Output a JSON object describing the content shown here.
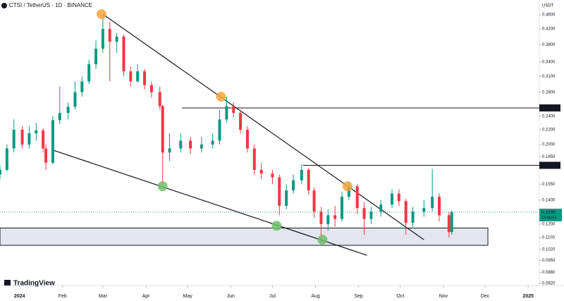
{
  "chart_data": {
    "type": "candlestick",
    "title": "CTSI / TetherUS · 1D · BINANCE",
    "currency": "USDT",
    "brand": "TradingView",
    "log_scale": true,
    "up_color": "#089981",
    "down_color": "#f23645",
    "x": [
      -14,
      -9,
      -4,
      2,
      7,
      12,
      17,
      19,
      24,
      29,
      35,
      40,
      45,
      50,
      55,
      60,
      65,
      70,
      75,
      80,
      85,
      90,
      95,
      101,
      103,
      108,
      116,
      123,
      131,
      139,
      144,
      149,
      154,
      159,
      164,
      169,
      174,
      182,
      187,
      192,
      197,
      203,
      208,
      212,
      217,
      222,
      227,
      232,
      237,
      243,
      248,
      253,
      260,
      268,
      273,
      278,
      283,
      291,
      297,
      302,
      309,
      311
    ],
    "open": [
      0.165,
      0.17,
      0.195,
      0.22,
      0.2,
      0.215,
      0.219,
      0.195,
      0.178,
      0.234,
      0.245,
      0.255,
      0.28,
      0.3,
      0.335,
      0.37,
      0.42,
      0.387,
      0.4,
      0.32,
      0.3,
      0.32,
      0.293,
      0.28,
      0.256,
      0.19,
      0.195,
      0.205,
      0.195,
      0.2,
      0.205,
      0.235,
      0.256,
      0.245,
      0.22,
      0.195,
      0.17,
      0.166,
      0.162,
      0.135,
      0.149,
      0.159,
      0.17,
      0.149,
      0.13,
      0.12,
      0.127,
      0.124,
      0.143,
      0.153,
      0.133,
      0.124,
      0.13,
      0.136,
      0.146,
      0.139,
      0.121,
      0.13,
      0.133,
      0.143,
      0.127,
      0.114
    ],
    "high": [
      0.175,
      0.2,
      0.235,
      0.225,
      0.225,
      0.23,
      0.222,
      0.2,
      0.24,
      0.29,
      0.262,
      0.3,
      0.31,
      0.345,
      0.39,
      0.462,
      0.44,
      0.41,
      0.405,
      0.33,
      0.335,
      0.325,
      0.3,
      0.29,
      0.258,
      0.215,
      0.215,
      0.21,
      0.21,
      0.215,
      0.25,
      0.272,
      0.262,
      0.25,
      0.225,
      0.2,
      0.178,
      0.17,
      0.165,
      0.155,
      0.165,
      0.176,
      0.172,
      0.152,
      0.134,
      0.132,
      0.135,
      0.148,
      0.158,
      0.155,
      0.138,
      0.134,
      0.14,
      0.15,
      0.15,
      0.141,
      0.134,
      0.14,
      0.171,
      0.146,
      0.13,
      0.131
    ],
    "low": [
      0.16,
      0.168,
      0.19,
      0.195,
      0.195,
      0.205,
      0.19,
      0.17,
      0.176,
      0.228,
      0.235,
      0.25,
      0.272,
      0.295,
      0.325,
      0.36,
      0.3,
      0.36,
      0.31,
      0.29,
      0.298,
      0.285,
      0.27,
      0.25,
      0.155,
      0.18,
      0.19,
      0.188,
      0.19,
      0.195,
      0.2,
      0.23,
      0.238,
      0.215,
      0.19,
      0.165,
      0.16,
      0.155,
      0.127,
      0.132,
      0.146,
      0.155,
      0.145,
      0.125,
      0.106,
      0.115,
      0.118,
      0.122,
      0.14,
      0.128,
      0.112,
      0.12,
      0.126,
      0.133,
      0.135,
      0.112,
      0.118,
      0.126,
      0.13,
      0.122,
      0.11,
      0.112
    ],
    "close": [
      0.17,
      0.195,
      0.22,
      0.2,
      0.215,
      0.219,
      0.195,
      0.178,
      0.234,
      0.245,
      0.255,
      0.28,
      0.3,
      0.335,
      0.37,
      0.42,
      0.387,
      0.4,
      0.32,
      0.3,
      0.32,
      0.293,
      0.28,
      0.256,
      0.19,
      0.195,
      0.205,
      0.195,
      0.2,
      0.205,
      0.235,
      0.256,
      0.245,
      0.22,
      0.195,
      0.17,
      0.166,
      0.162,
      0.135,
      0.149,
      0.159,
      0.17,
      0.149,
      0.13,
      0.12,
      0.127,
      0.124,
      0.143,
      0.153,
      0.133,
      0.124,
      0.13,
      0.136,
      0.146,
      0.139,
      0.121,
      0.13,
      0.133,
      0.143,
      0.127,
      0.114,
      0.1295
    ],
    "xlim": [
      -14,
      374
    ],
    "xticks": [
      {
        "value": 0,
        "label": "2024"
      },
      {
        "value": 31,
        "label": "Feb"
      },
      {
        "value": 60,
        "label": "Mar"
      },
      {
        "value": 91,
        "label": "Apr"
      },
      {
        "value": 121,
        "label": "May"
      },
      {
        "value": 152,
        "label": "Jun"
      },
      {
        "value": 182,
        "label": "Jul"
      },
      {
        "value": 213,
        "label": "Aug"
      },
      {
        "value": 244,
        "label": "Sep"
      },
      {
        "value": 274,
        "label": "Oct"
      },
      {
        "value": 305,
        "label": "Nov"
      },
      {
        "value": 335,
        "label": "Dec"
      },
      {
        "value": 366,
        "label": "2025"
      }
    ],
    "ylim": [
      0.082,
      0.506
    ],
    "yticks": [
      {
        "value": 0.46,
        "label": "0.4600"
      },
      {
        "value": 0.42,
        "label": "0.4200"
      },
      {
        "value": 0.38,
        "label": "0.3800"
      },
      {
        "value": 0.34,
        "label": "0.3400"
      },
      {
        "value": 0.31,
        "label": "0.3100"
      },
      {
        "value": 0.28,
        "label": "0.2800"
      },
      {
        "value": 0.24,
        "label": "0.2400"
      },
      {
        "value": 0.22,
        "label": "0.2200"
      },
      {
        "value": 0.2,
        "label": "0.2000"
      },
      {
        "value": 0.185,
        "label": "0.1850"
      },
      {
        "value": 0.155,
        "label": "0.1550"
      },
      {
        "value": 0.14,
        "label": "0.1400"
      },
      {
        "value": 0.12,
        "label": "0.1200"
      },
      {
        "value": 0.11,
        "label": "0.1100"
      },
      {
        "value": 0.102,
        "label": "0.1020"
      },
      {
        "value": 0.095,
        "label": "0.0950"
      },
      {
        "value": 0.088,
        "label": "0.0880"
      },
      {
        "value": 0.082,
        "label": "0.0820"
      }
    ],
    "levels": [
      {
        "value": 0.253,
        "label": "0.2530",
        "from": 117
      },
      {
        "value": 0.175,
        "label": "0.1750",
        "from": 204
      }
    ],
    "last_price": {
      "value": 0.1295,
      "label": "0.1295",
      "countdown": "19:08:56"
    },
    "zone": {
      "low": 0.1047,
      "high": 0.117,
      "from": -14,
      "to": 337
    },
    "trendlines": [
      {
        "from": [
          60,
          0.462
        ],
        "to": [
          291,
          0.1085
        ]
      },
      {
        "from": [
          24,
          0.193
        ],
        "to": [
          250,
          0.0982
        ]
      }
    ],
    "markers": [
      {
        "x": 59,
        "y": 0.462,
        "color": "#f7a43a"
      },
      {
        "x": 145,
        "y": 0.272,
        "color": "#f7a43a"
      },
      {
        "x": 236,
        "y": 0.153,
        "color": "#f7a43a"
      },
      {
        "x": 103,
        "y": 0.153,
        "color": "#6fbf6a"
      },
      {
        "x": 185,
        "y": 0.1187,
        "color": "#6fbf6a"
      },
      {
        "x": 218,
        "y": 0.1085,
        "color": "#6fbf6a"
      }
    ]
  }
}
